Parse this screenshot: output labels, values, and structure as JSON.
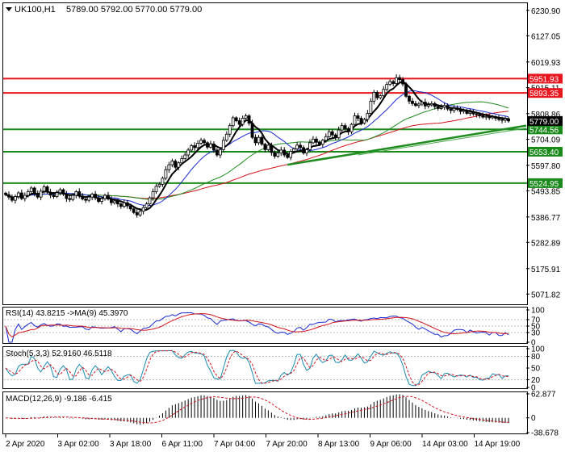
{
  "header": {
    "symbol_tf": "UK100,H1",
    "ohlc": "5789.00 5792.00 5770.00 5779.00",
    "symbol_icon": "triangle-down-icon"
  },
  "chart_data": {
    "type": "candlestick",
    "symbol": "UK100",
    "timeframe": "H1",
    "price_axis": {
      "range": [
        5030,
        6260
      ],
      "ticks": [
        6230.9,
        6127.05,
        6019.93,
        5915.11,
        5808.86,
        5704.09,
        5597.8,
        5493.85,
        5386.77,
        5282.89,
        5175.91,
        5071.82
      ]
    },
    "time_axis": {
      "labels": [
        "2 Apr 2020",
        "3 Apr 02:00",
        "3 Apr 18:00",
        "6 Apr 11:00",
        "7 Apr 04:00",
        "7 Apr 20:00",
        "8 Apr 13:00",
        "9 Apr 06:00",
        "14 Apr 03:00",
        "14 Apr 19:00"
      ]
    },
    "last_price": 5779.0,
    "levels": [
      {
        "value": 5951.93,
        "label": "5951.93",
        "color": "#e8141e"
      },
      {
        "value": 5893.35,
        "label": "5893.35",
        "color": "#e8141e"
      },
      {
        "value": 5744.56,
        "label": "5744.56",
        "color": "#1a8a1a"
      },
      {
        "value": 5653.4,
        "label": "5653.40",
        "color": "#1a8a1a"
      },
      {
        "value": 5524.95,
        "label": "5524.95",
        "color": "#1a8a1a"
      }
    ],
    "closes": [
      5478,
      5468,
      5455,
      5470,
      5485,
      5462,
      5475,
      5490,
      5505,
      5482,
      5468,
      5492,
      5510,
      5488,
      5476,
      5470,
      5486,
      5498,
      5480,
      5462,
      5458,
      5475,
      5490,
      5472,
      5460,
      5455,
      5468,
      5480,
      5465,
      5450,
      5462,
      5475,
      5460,
      5445,
      5452,
      5440,
      5430,
      5445,
      5432,
      5420,
      5405,
      5395,
      5410,
      5425,
      5440,
      5465,
      5490,
      5512,
      5520,
      5545,
      5580,
      5600,
      5615,
      5590,
      5608,
      5625,
      5640,
      5660,
      5678,
      5670,
      5688,
      5700,
      5690,
      5672,
      5685,
      5660,
      5640,
      5662,
      5700,
      5725,
      5760,
      5792,
      5780,
      5765,
      5790,
      5800,
      5770,
      5712,
      5690,
      5712,
      5684,
      5662,
      5680,
      5650,
      5635,
      5648,
      5660,
      5640,
      5630,
      5655,
      5665,
      5680,
      5670,
      5648,
      5662,
      5690,
      5705,
      5692,
      5684,
      5700,
      5715,
      5735,
      5722,
      5710,
      5742,
      5760,
      5748,
      5735,
      5765,
      5800,
      5790,
      5770,
      5785,
      5810,
      5860,
      5896,
      5874,
      5882,
      5908,
      5928,
      5940,
      5932,
      5956,
      5948,
      5930,
      5880,
      5860,
      5850,
      5842,
      5848,
      5856,
      5840,
      5845,
      5850,
      5838,
      5830,
      5835,
      5842,
      5828,
      5822,
      5830,
      5826,
      5818,
      5822,
      5810,
      5815,
      5808,
      5806,
      5800,
      5795,
      5798,
      5792,
      5796,
      5790,
      5785,
      5782,
      5788,
      5779
    ],
    "indicators": {
      "rsi": {
        "label": "RSI(14) 43.8215 ->MA(9) 45.3970",
        "range": [
          0,
          100
        ],
        "ticks": [
          100,
          70,
          50,
          30,
          0
        ],
        "levels": [
          70,
          50,
          30
        ]
      },
      "stochastic": {
        "label": "Stoch(5,3,3) 52.9160 46.5118",
        "range": [
          0,
          100
        ],
        "ticks": [
          100,
          80,
          50,
          20,
          0
        ],
        "levels": [
          80,
          20
        ]
      },
      "macd": {
        "label": "MACD(12,26,9) -9.186 -6.415",
        "range": [
          -38.678,
          62.877
        ],
        "ticks": [
          62.877,
          0.0,
          -38.678
        ]
      }
    }
  }
}
